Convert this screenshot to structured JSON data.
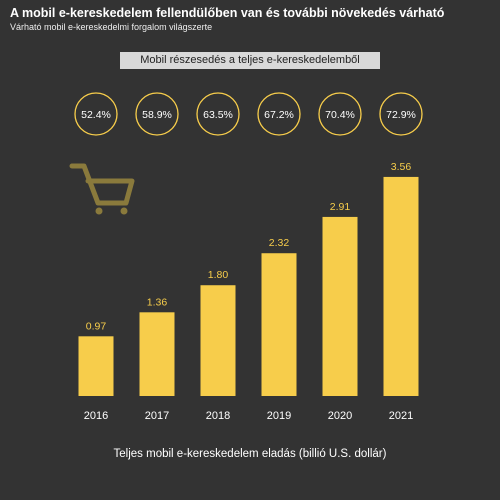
{
  "title": "A mobil e-kereskedelem fellendülőben van és további növekedés várható",
  "subtitle": "Várható mobil e-kereskedelmi forgalom világszerte",
  "share_label": "Mobil részesedés a teljes e-kereskedelemből",
  "icon": "shopping-cart-icon",
  "colors": {
    "background": "#333333",
    "bar": "#f7cd4b",
    "accent": "#f7cd4b",
    "text": "#ffffff",
    "cart": "#8a7a3c"
  },
  "chart_data": {
    "type": "bar",
    "categories": [
      "2016",
      "2017",
      "2018",
      "2019",
      "2020",
      "2021"
    ],
    "values": [
      0.97,
      1.36,
      1.8,
      2.32,
      2.91,
      3.56
    ],
    "value_labels": [
      "0.97",
      "1.36",
      "1.80",
      "2.32",
      "2.91",
      "3.56"
    ],
    "mobile_share": [
      "52.4%",
      "58.9%",
      "63.5%",
      "67.2%",
      "70.4%",
      "72.9%"
    ],
    "xlabel": "Teljes mobil e-kereskedelem eladás (billió U.S. dollár)",
    "ylabel": "",
    "ylim": [
      0,
      5.2
    ],
    "grid": false,
    "legend": "none"
  }
}
